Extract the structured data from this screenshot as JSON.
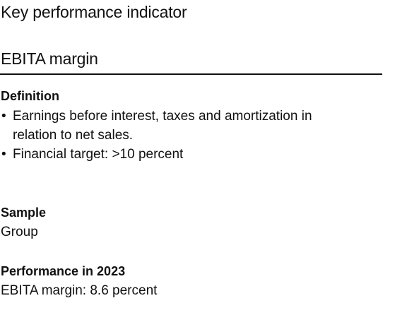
{
  "header": {
    "kpi_title": "Key performance indicator",
    "metric_title": "EBITA margin"
  },
  "definition": {
    "label": "Definition",
    "bullets": [
      {
        "marker": "•",
        "text": "Earnings before interest, taxes and amortization in relation to net sales."
      },
      {
        "marker": "•",
        "text": "Financial target: >10 percent"
      }
    ]
  },
  "sample": {
    "label": "Sample",
    "value": "Group"
  },
  "performance": {
    "label": "Performance in 2023",
    "value": "EBITA margin: 8.6 percent"
  }
}
